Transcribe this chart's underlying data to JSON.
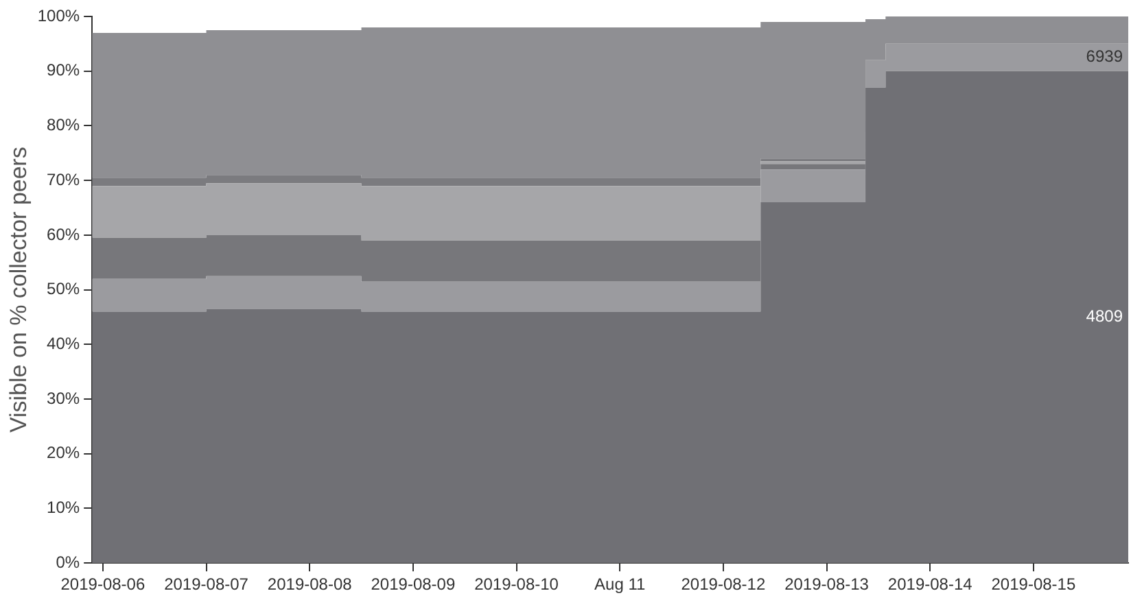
{
  "chart_data": {
    "type": "area",
    "stacked": true,
    "ylabel": "Visible on % collector peers",
    "x": [
      "2019-08-05T21:30",
      "2019-08-06T23:59",
      "2019-08-07T00:00",
      "2019-08-08T11:59",
      "2019-08-08T12:00",
      "2019-08-12T08:39",
      "2019-08-12T08:40",
      "2019-08-13T08:59",
      "2019-08-13T09:00",
      "2019-08-13T13:39",
      "2019-08-13T13:40",
      "2019-08-15T22:00"
    ],
    "series": [
      {
        "name": "4809",
        "color": "#707075",
        "values": [
          46,
          46,
          46.5,
          46.5,
          46,
          46,
          66,
          66,
          87,
          87,
          90,
          90
        ]
      },
      {
        "name": "6939",
        "color": "#9b9b9f",
        "values": [
          6,
          6,
          6,
          6,
          5.5,
          5.5,
          6,
          6,
          5,
          5,
          5,
          5
        ]
      },
      {
        "color": "#77777b",
        "values": [
          7.5,
          7.5,
          7.5,
          7.5,
          7.5,
          7.5,
          1,
          1,
          0,
          0,
          0,
          0
        ]
      },
      {
        "color": "#a6a6a9",
        "values": [
          9.5,
          9.5,
          9.5,
          9.5,
          10,
          10,
          0.5,
          0.5,
          0,
          0,
          0,
          0
        ]
      },
      {
        "color": "#7b7b7f",
        "values": [
          1.5,
          1.5,
          1.5,
          1.5,
          1.5,
          1.5,
          0.5,
          0.5,
          0,
          0,
          0,
          0
        ]
      },
      {
        "color": "#8f8f93",
        "values": [
          26.5,
          26.5,
          26.5,
          26.5,
          27.5,
          27.5,
          25,
          25,
          7.5,
          7.5,
          5,
          5
        ]
      }
    ],
    "xlim": [
      "2019-08-05T21:30",
      "2019-08-15T22:00"
    ],
    "xticks": [
      {
        "value": "2019-08-06",
        "label": "2019-08-06"
      },
      {
        "value": "2019-08-07",
        "label": "2019-08-07"
      },
      {
        "value": "2019-08-08",
        "label": "2019-08-08"
      },
      {
        "value": "2019-08-09",
        "label": "2019-08-09"
      },
      {
        "value": "2019-08-10",
        "label": "2019-08-10"
      },
      {
        "value": "2019-08-11",
        "label": "Aug 11"
      },
      {
        "value": "2019-08-12",
        "label": "2019-08-12"
      },
      {
        "value": "2019-08-13",
        "label": "2019-08-13"
      },
      {
        "value": "2019-08-14",
        "label": "2019-08-14"
      },
      {
        "value": "2019-08-15",
        "label": "2019-08-15"
      }
    ],
    "ylim": [
      0,
      100
    ],
    "yticks": [
      {
        "value": 0,
        "label": "0%"
      },
      {
        "value": 10,
        "label": "10%"
      },
      {
        "value": 20,
        "label": "20%"
      },
      {
        "value": 30,
        "label": "30%"
      },
      {
        "value": 40,
        "label": "40%"
      },
      {
        "value": 50,
        "label": "50%"
      },
      {
        "value": 60,
        "label": "60%"
      },
      {
        "value": 70,
        "label": "70%"
      },
      {
        "value": 80,
        "label": "80%"
      },
      {
        "value": 90,
        "label": "90%"
      },
      {
        "value": 100,
        "label": "100%"
      }
    ],
    "grid": false,
    "legend": false
  }
}
